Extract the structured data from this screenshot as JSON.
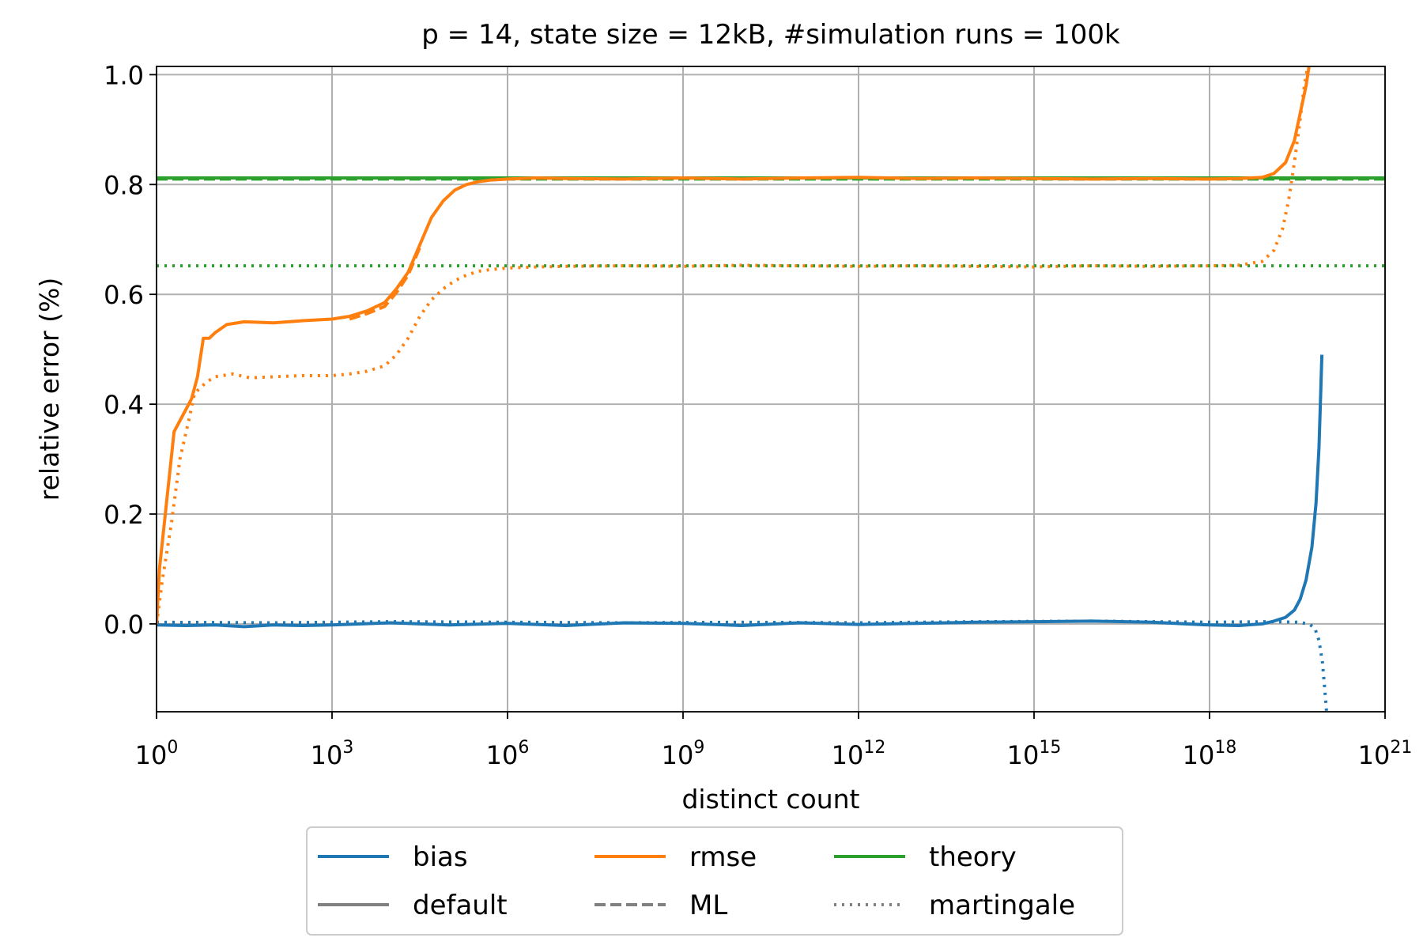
{
  "chart_data": {
    "type": "line",
    "title": "p = 14, state size = 12kB, #simulation runs = 100k",
    "xlabel": "distinct count",
    "ylabel": "relative error (%)",
    "xscale": "log",
    "xlim_exp": [
      0,
      21
    ],
    "ylim": [
      -0.16,
      1.015
    ],
    "grid": true,
    "x_ticks": [
      {
        "base": "10",
        "exp": "0",
        "value_exp": 0
      },
      {
        "base": "10",
        "exp": "3",
        "value_exp": 3
      },
      {
        "base": "10",
        "exp": "6",
        "value_exp": 6
      },
      {
        "base": "10",
        "exp": "9",
        "value_exp": 9
      },
      {
        "base": "10",
        "exp": "12",
        "value_exp": 12
      },
      {
        "base": "10",
        "exp": "15",
        "value_exp": 15
      },
      {
        "base": "10",
        "exp": "18",
        "value_exp": 18
      },
      {
        "base": "10",
        "exp": "21",
        "value_exp": 21
      }
    ],
    "y_ticks": [
      {
        "label": "0.0",
        "value": 0.0
      },
      {
        "label": "0.2",
        "value": 0.2
      },
      {
        "label": "0.4",
        "value": 0.4
      },
      {
        "label": "0.6",
        "value": 0.6
      },
      {
        "label": "0.8",
        "value": 0.8
      },
      {
        "label": "1.0",
        "value": 1.0
      }
    ],
    "colors": {
      "bias": "#1f77b4",
      "rmse": "#ff7f0e",
      "theory": "#2ca02c",
      "legend_gray": "#808080",
      "grid": "#b0b0b0"
    },
    "series": [
      {
        "name": "rmse default",
        "metric": "rmse",
        "style": "solid",
        "x_log10": [
          0,
          0.05,
          0.15,
          0.3,
          0.45,
          0.6,
          0.7,
          0.8,
          0.9,
          1.0,
          1.2,
          1.5,
          2.0,
          2.5,
          3.0,
          3.3,
          3.6,
          3.9,
          4.1,
          4.3,
          4.5,
          4.7,
          4.9,
          5.1,
          5.3,
          5.5,
          5.7,
          6.0,
          6.5,
          7.0,
          8.0,
          9.0,
          10.0,
          11.0,
          12.0,
          13.0,
          14.0,
          15.0,
          16.0,
          17.0,
          18.0,
          18.5,
          18.9,
          19.1,
          19.3,
          19.45,
          19.55,
          19.65,
          19.7
        ],
        "y": [
          0.0,
          0.1,
          0.2,
          0.35,
          0.38,
          0.41,
          0.45,
          0.52,
          0.52,
          0.53,
          0.545,
          0.55,
          0.548,
          0.552,
          0.555,
          0.56,
          0.57,
          0.585,
          0.61,
          0.64,
          0.69,
          0.74,
          0.77,
          0.79,
          0.8,
          0.805,
          0.808,
          0.81,
          0.812,
          0.811,
          0.81,
          0.812,
          0.81,
          0.812,
          0.813,
          0.811,
          0.812,
          0.811,
          0.81,
          0.811,
          0.81,
          0.811,
          0.813,
          0.82,
          0.84,
          0.88,
          0.93,
          0.98,
          1.015
        ]
      },
      {
        "name": "rmse ML",
        "metric": "rmse",
        "style": "dashed",
        "x_log10": [
          3.3,
          3.6,
          3.9,
          4.1,
          4.3,
          4.5
        ],
        "y": [
          0.555,
          0.565,
          0.578,
          0.603,
          0.635,
          0.685
        ]
      },
      {
        "name": "rmse martingale",
        "metric": "rmse",
        "style": "dotted",
        "x_log10": [
          0,
          0.1,
          0.25,
          0.4,
          0.55,
          0.65,
          0.75,
          0.85,
          1.0,
          1.3,
          1.6,
          2.0,
          2.5,
          3.0,
          3.3,
          3.6,
          3.9,
          4.1,
          4.3,
          4.5,
          4.7,
          4.9,
          5.1,
          5.3,
          5.5,
          5.7,
          6.0,
          6.5,
          7.0,
          8.0,
          9.0,
          10.0,
          11.0,
          12.0,
          13.0,
          14.0,
          15.0,
          16.0,
          17.0,
          18.0,
          18.5,
          18.9,
          19.1,
          19.25,
          19.35,
          19.45,
          19.55,
          19.62,
          19.68
        ],
        "y": [
          0.0,
          0.08,
          0.18,
          0.3,
          0.37,
          0.42,
          0.43,
          0.44,
          0.45,
          0.455,
          0.448,
          0.45,
          0.452,
          0.452,
          0.455,
          0.46,
          0.47,
          0.49,
          0.52,
          0.56,
          0.59,
          0.61,
          0.625,
          0.635,
          0.642,
          0.645,
          0.648,
          0.65,
          0.651,
          0.652,
          0.651,
          0.653,
          0.652,
          0.651,
          0.652,
          0.651,
          0.65,
          0.652,
          0.651,
          0.652,
          0.653,
          0.66,
          0.68,
          0.72,
          0.77,
          0.84,
          0.92,
          0.98,
          1.015
        ]
      },
      {
        "name": "bias default",
        "metric": "bias",
        "style": "solid",
        "x_log10": [
          0,
          0.5,
          1.0,
          1.5,
          2.0,
          2.5,
          3.0,
          4.0,
          5.0,
          6.0,
          7.0,
          8.0,
          9.0,
          10.0,
          11.0,
          12.0,
          13.0,
          14.0,
          15.0,
          16.0,
          17.0,
          18.0,
          18.5,
          18.9,
          19.1,
          19.3,
          19.45,
          19.55,
          19.65,
          19.75,
          19.82,
          19.87,
          19.9,
          19.92
        ],
        "y": [
          -0.002,
          -0.003,
          -0.002,
          -0.005,
          -0.002,
          -0.003,
          -0.002,
          0.002,
          -0.002,
          0.001,
          -0.003,
          0.002,
          0.001,
          -0.003,
          0.002,
          -0.001,
          0.001,
          0.003,
          0.004,
          0.005,
          0.003,
          -0.002,
          -0.003,
          0.0,
          0.005,
          0.012,
          0.025,
          0.045,
          0.08,
          0.14,
          0.22,
          0.32,
          0.42,
          0.49
        ]
      },
      {
        "name": "bias martingale",
        "metric": "bias",
        "style": "dotted",
        "x_log10": [
          0,
          2.0,
          4.0,
          6.0,
          8.0,
          10.0,
          12.0,
          14.0,
          16.0,
          18.0,
          19.0,
          19.5,
          19.7,
          19.8,
          19.87,
          19.93,
          19.97,
          20.0
        ],
        "y": [
          0.003,
          0.002,
          0.004,
          0.003,
          0.002,
          0.003,
          0.002,
          0.004,
          0.005,
          0.003,
          0.004,
          0.003,
          0.0,
          -0.008,
          -0.03,
          -0.07,
          -0.12,
          -0.16
        ]
      },
      {
        "name": "theory default",
        "metric": "theory",
        "style": "solid",
        "x_log10": [
          0,
          21
        ],
        "y": [
          0.812,
          0.812
        ]
      },
      {
        "name": "theory ML",
        "metric": "theory",
        "style": "dashed",
        "x_log10": [
          0,
          21
        ],
        "y": [
          0.81,
          0.81
        ]
      },
      {
        "name": "theory martingale",
        "metric": "theory",
        "style": "dotted",
        "x_log10": [
          0,
          21
        ],
        "y": [
          0.652,
          0.652
        ]
      }
    ],
    "legend": {
      "placement": "bottom-center",
      "entries": [
        {
          "label": "bias",
          "color": "#1f77b4",
          "style": "solid"
        },
        {
          "label": "rmse",
          "color": "#ff7f0e",
          "style": "solid"
        },
        {
          "label": "theory",
          "color": "#2ca02c",
          "style": "solid"
        },
        {
          "label": "default",
          "color": "#808080",
          "style": "solid"
        },
        {
          "label": "ML",
          "color": "#808080",
          "style": "dashed"
        },
        {
          "label": "martingale",
          "color": "#808080",
          "style": "dotted"
        }
      ]
    }
  }
}
